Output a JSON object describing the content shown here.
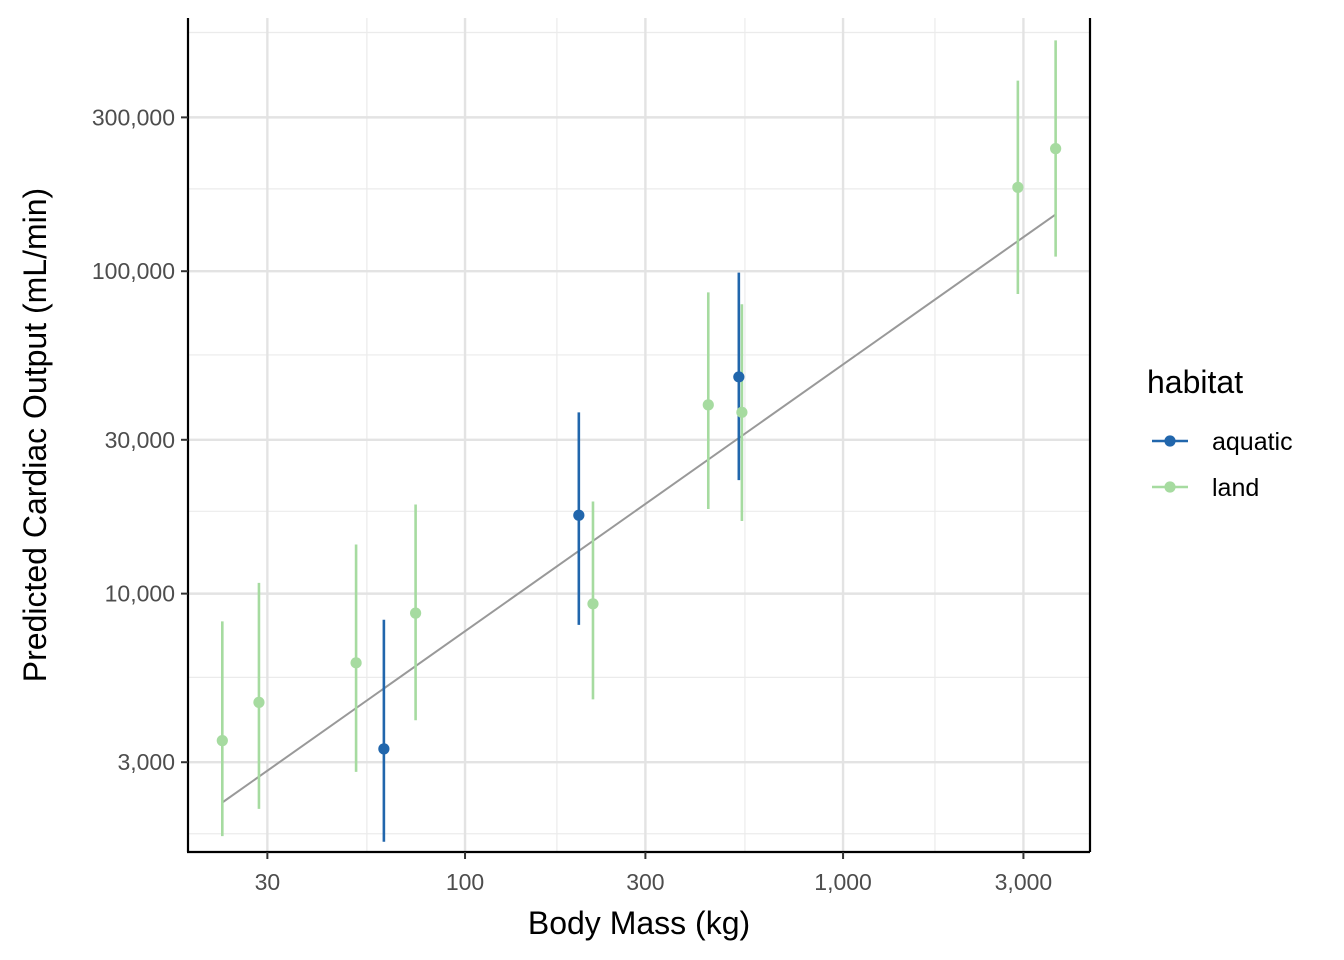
{
  "chart_data": {
    "type": "scatter",
    "xlabel": "Body Mass (kg)",
    "ylabel": "Predicted Cardiac Output (mL/min)",
    "x_scale": "log10",
    "y_scale": "log10",
    "xlim": [
      18.5,
      4500
    ],
    "ylim": [
      1580,
      610000
    ],
    "x_ticks": [
      {
        "value": 30,
        "label": "30"
      },
      {
        "value": 100,
        "label": "100"
      },
      {
        "value": 300,
        "label": "300"
      },
      {
        "value": 1000,
        "label": "1,000"
      },
      {
        "value": 3000,
        "label": "3,000"
      }
    ],
    "x_minor_ticks": [
      55,
      175,
      550,
      1750
    ],
    "y_ticks": [
      {
        "value": 3000,
        "label": "3,000"
      },
      {
        "value": 10000,
        "label": "10,000"
      },
      {
        "value": 30000,
        "label": "30,000"
      },
      {
        "value": 100000,
        "label": "100,000"
      },
      {
        "value": 300000,
        "label": "300,000"
      }
    ],
    "y_minor_ticks": [
      1800,
      5500,
      18000,
      55000,
      180000,
      550000
    ],
    "grid": true,
    "legend": {
      "title": "habitat",
      "placement": "right",
      "entries": [
        {
          "name": "aquatic",
          "color": "#2166ac"
        },
        {
          "name": "land",
          "color": "#a6dba0"
        }
      ]
    },
    "fit_line": {
      "color": "#999999",
      "points": [
        [
          22.8,
          2250
        ],
        [
          3650,
          150000
        ]
      ]
    },
    "series": [
      {
        "name": "aquatic",
        "color": "#2166ac",
        "points": [
          {
            "x": 61,
            "y": 3300,
            "ymin": 1700,
            "ymax": 8300
          },
          {
            "x": 200,
            "y": 17500,
            "ymin": 8000,
            "ymax": 36500
          },
          {
            "x": 530,
            "y": 47000,
            "ymin": 22500,
            "ymax": 99000
          }
        ]
      },
      {
        "name": "land",
        "color": "#a6dba0",
        "points": [
          {
            "x": 22.8,
            "y": 3500,
            "ymin": 1770,
            "ymax": 8200
          },
          {
            "x": 28.5,
            "y": 4600,
            "ymin": 2150,
            "ymax": 10800
          },
          {
            "x": 51.5,
            "y": 6100,
            "ymin": 2800,
            "ymax": 14200
          },
          {
            "x": 74,
            "y": 8700,
            "ymin": 4050,
            "ymax": 18900
          },
          {
            "x": 218,
            "y": 9300,
            "ymin": 4700,
            "ymax": 19300
          },
          {
            "x": 440,
            "y": 38500,
            "ymin": 18300,
            "ymax": 86000
          },
          {
            "x": 540,
            "y": 36500,
            "ymin": 16800,
            "ymax": 79000
          },
          {
            "x": 2900,
            "y": 182000,
            "ymin": 85000,
            "ymax": 390000
          },
          {
            "x": 3650,
            "y": 240000,
            "ymin": 111000,
            "ymax": 520000
          }
        ]
      }
    ]
  }
}
